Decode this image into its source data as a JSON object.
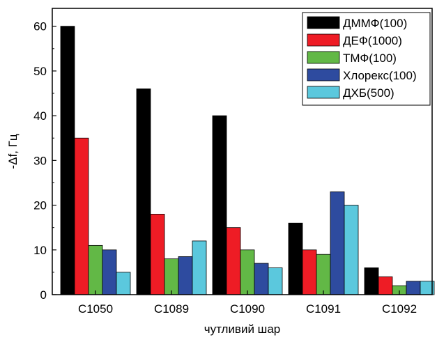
{
  "chart_data": {
    "type": "bar",
    "xlabel": "чутливий шар",
    "ylabel": "-Δf, Гц",
    "ylim": [
      0,
      64
    ],
    "yticks": [
      0,
      10,
      20,
      30,
      40,
      50,
      60
    ],
    "categories": [
      "C1050",
      "C1089",
      "C1090",
      "C1091",
      "C1092"
    ],
    "legend_position": "top-right",
    "series": [
      {
        "name": "ДММФ(100)",
        "color": "#000000",
        "values": [
          60,
          46,
          40,
          16,
          6
        ]
      },
      {
        "name": "ДЕФ(1000)",
        "color": "#ee1c25",
        "values": [
          35,
          18,
          15,
          10,
          4
        ]
      },
      {
        "name": "ТМФ(100)",
        "color": "#62b846",
        "values": [
          11,
          8,
          10,
          9,
          2
        ]
      },
      {
        "name": "Хлорекс(100)",
        "color": "#2e4b9f",
        "values": [
          10,
          8.5,
          7,
          23,
          3
        ]
      },
      {
        "name": "ДХБ(500)",
        "color": "#5bc8dd",
        "values": [
          5,
          12,
          6,
          20,
          3
        ]
      }
    ]
  }
}
